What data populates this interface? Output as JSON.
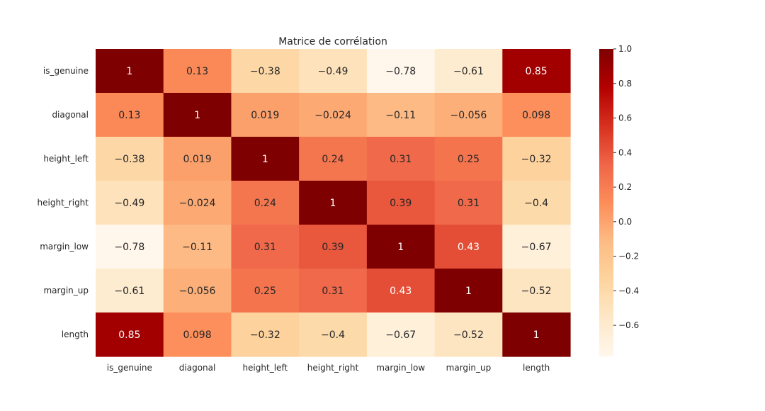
{
  "chart_data": {
    "type": "heatmap",
    "title": "Matrice de corrélation",
    "xlabel": "",
    "ylabel": "",
    "rows": [
      "is_genuine",
      "diagonal",
      "height_left",
      "height_right",
      "margin_low",
      "margin_up",
      "length"
    ],
    "columns": [
      "is_genuine",
      "diagonal",
      "height_left",
      "height_right",
      "margin_low",
      "margin_up",
      "length"
    ],
    "values": [
      [
        1,
        0.13,
        -0.38,
        -0.49,
        -0.78,
        -0.61,
        0.85
      ],
      [
        0.13,
        1,
        0.019,
        -0.024,
        -0.11,
        -0.056,
        0.098
      ],
      [
        -0.38,
        0.019,
        1,
        0.24,
        0.31,
        0.25,
        -0.32
      ],
      [
        -0.49,
        -0.024,
        0.24,
        1,
        0.39,
        0.31,
        -0.4
      ],
      [
        -0.78,
        -0.11,
        0.31,
        0.39,
        1,
        0.43,
        -0.67
      ],
      [
        -0.61,
        -0.056,
        0.25,
        0.31,
        0.43,
        1,
        -0.52
      ],
      [
        0.85,
        0.098,
        -0.32,
        -0.4,
        -0.67,
        -0.52,
        1
      ]
    ],
    "colormap": "OrRd",
    "colorbar": {
      "vmin": -0.78,
      "vmax": 1,
      "ticks": [
        1.0,
        0.8,
        0.6,
        0.4,
        0.2,
        0.0,
        -0.2,
        -0.4,
        -0.6
      ],
      "tick_labels": [
        "1.0",
        "0.8",
        "0.6",
        "0.4",
        "0.2",
        "0.0",
        "−0.2",
        "−0.4",
        "−0.6"
      ]
    },
    "annotations": true,
    "grid": false,
    "colors": {
      "stops": [
        "#fff7ec",
        "#fee8c8",
        "#fdd49e",
        "#fdbb84",
        "#fc8d59",
        "#ef6548",
        "#d7301f",
        "#b30000",
        "#7f0000"
      ]
    }
  }
}
